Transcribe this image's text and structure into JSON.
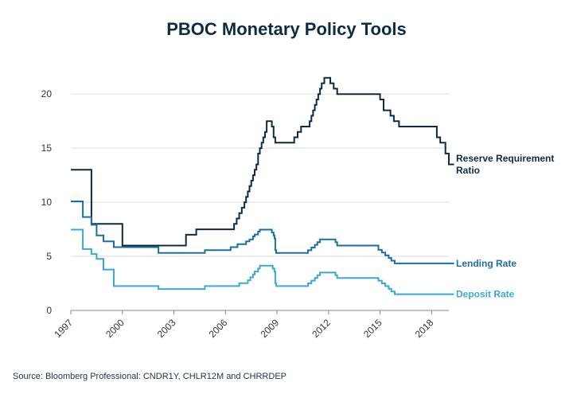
{
  "source": "Source: Bloomberg Professional: CNDR1Y, CHLR12M and CHRRDEP",
  "chart_data": {
    "type": "line",
    "title": "PBOC Monetary Policy Tools",
    "xlabel": "",
    "ylabel": "",
    "xlim": [
      1997,
      2019
    ],
    "ylim": [
      0,
      22
    ],
    "x_ticks": [
      "1997",
      "2000",
      "2003",
      "2006",
      "2009",
      "2012",
      "2015",
      "2018"
    ],
    "y_ticks": [
      "0",
      "5",
      "10",
      "15",
      "20"
    ],
    "grid": "horizontal",
    "legend": "direct labels at right end of lines",
    "series": [
      {
        "name": "Reserve Requirement Ratio",
        "label_lines": [
          "Reserve Requirement",
          "Ratio"
        ],
        "color": "#0d2b45",
        "points": [
          [
            1997.0,
            13
          ],
          [
            1998.2,
            13
          ],
          [
            1998.2,
            8
          ],
          [
            2000.0,
            8
          ],
          [
            2000.0,
            6
          ],
          [
            2003.7,
            6
          ],
          [
            2003.7,
            7
          ],
          [
            2004.3,
            7
          ],
          [
            2004.3,
            7.5
          ],
          [
            2006.5,
            7.5
          ],
          [
            2006.5,
            8
          ],
          [
            2006.65,
            8
          ],
          [
            2006.65,
            8.5
          ],
          [
            2006.8,
            8.5
          ],
          [
            2006.8,
            9
          ],
          [
            2006.95,
            9
          ],
          [
            2006.95,
            9.5
          ],
          [
            2007.1,
            9.5
          ],
          [
            2007.1,
            10
          ],
          [
            2007.2,
            10
          ],
          [
            2007.2,
            10.5
          ],
          [
            2007.3,
            10.5
          ],
          [
            2007.3,
            11
          ],
          [
            2007.4,
            11
          ],
          [
            2007.4,
            11.5
          ],
          [
            2007.5,
            11.5
          ],
          [
            2007.5,
            12
          ],
          [
            2007.6,
            12
          ],
          [
            2007.6,
            12.5
          ],
          [
            2007.7,
            12.5
          ],
          [
            2007.7,
            13
          ],
          [
            2007.8,
            13
          ],
          [
            2007.8,
            13.5
          ],
          [
            2007.9,
            13.5
          ],
          [
            2007.9,
            14.5
          ],
          [
            2008.0,
            14.5
          ],
          [
            2008.0,
            15
          ],
          [
            2008.1,
            15
          ],
          [
            2008.1,
            15.5
          ],
          [
            2008.2,
            15.5
          ],
          [
            2008.2,
            16
          ],
          [
            2008.3,
            16
          ],
          [
            2008.3,
            16.5
          ],
          [
            2008.4,
            16.5
          ],
          [
            2008.4,
            17.5
          ],
          [
            2008.7,
            17.5
          ],
          [
            2008.7,
            17
          ],
          [
            2008.8,
            17
          ],
          [
            2008.8,
            16
          ],
          [
            2008.9,
            16
          ],
          [
            2008.9,
            15.5
          ],
          [
            2010.0,
            15.5
          ],
          [
            2010.0,
            16
          ],
          [
            2010.2,
            16
          ],
          [
            2010.2,
            16.5
          ],
          [
            2010.4,
            16.5
          ],
          [
            2010.4,
            17
          ],
          [
            2010.9,
            17
          ],
          [
            2010.9,
            17.5
          ],
          [
            2011.0,
            17.5
          ],
          [
            2011.0,
            18
          ],
          [
            2011.1,
            18
          ],
          [
            2011.1,
            18.5
          ],
          [
            2011.2,
            18.5
          ],
          [
            2011.2,
            19
          ],
          [
            2011.3,
            19
          ],
          [
            2011.3,
            19.5
          ],
          [
            2011.4,
            19.5
          ],
          [
            2011.4,
            20
          ],
          [
            2011.5,
            20
          ],
          [
            2011.5,
            20.5
          ],
          [
            2011.6,
            20.5
          ],
          [
            2011.6,
            21
          ],
          [
            2011.75,
            21
          ],
          [
            2011.75,
            21.5
          ],
          [
            2012.1,
            21.5
          ],
          [
            2012.1,
            21
          ],
          [
            2012.3,
            21
          ],
          [
            2012.3,
            20.5
          ],
          [
            2012.5,
            20.5
          ],
          [
            2012.5,
            20
          ],
          [
            2015.0,
            20
          ],
          [
            2015.0,
            19.5
          ],
          [
            2015.2,
            19.5
          ],
          [
            2015.2,
            18.5
          ],
          [
            2015.6,
            18.5
          ],
          [
            2015.6,
            18
          ],
          [
            2015.8,
            18
          ],
          [
            2015.8,
            17.5
          ],
          [
            2016.1,
            17.5
          ],
          [
            2016.1,
            17
          ],
          [
            2018.3,
            17
          ],
          [
            2018.3,
            16
          ],
          [
            2018.5,
            16
          ],
          [
            2018.5,
            15.5
          ],
          [
            2018.8,
            15.5
          ],
          [
            2018.8,
            14.5
          ],
          [
            2019.0,
            14.5
          ],
          [
            2019.0,
            13.5
          ],
          [
            2019.3,
            13.5
          ]
        ]
      },
      {
        "name": "Lending Rate",
        "label_lines": [
          "Lending Rate"
        ],
        "color": "#1a6fa3",
        "points": [
          [
            1997.0,
            10.08
          ],
          [
            1997.7,
            10.08
          ],
          [
            1997.7,
            8.64
          ],
          [
            1998.2,
            8.64
          ],
          [
            1998.2,
            7.92
          ],
          [
            1998.5,
            7.92
          ],
          [
            1998.5,
            6.93
          ],
          [
            1998.9,
            6.93
          ],
          [
            1998.9,
            6.39
          ],
          [
            1999.5,
            6.39
          ],
          [
            1999.5,
            5.85
          ],
          [
            2002.1,
            5.85
          ],
          [
            2002.1,
            5.31
          ],
          [
            2004.8,
            5.31
          ],
          [
            2004.8,
            5.58
          ],
          [
            2006.3,
            5.58
          ],
          [
            2006.3,
            5.85
          ],
          [
            2006.7,
            5.85
          ],
          [
            2006.7,
            6.12
          ],
          [
            2007.2,
            6.12
          ],
          [
            2007.2,
            6.39
          ],
          [
            2007.4,
            6.39
          ],
          [
            2007.4,
            6.57
          ],
          [
            2007.6,
            6.57
          ],
          [
            2007.6,
            6.84
          ],
          [
            2007.7,
            6.84
          ],
          [
            2007.7,
            7.02
          ],
          [
            2007.9,
            7.02
          ],
          [
            2007.9,
            7.29
          ],
          [
            2008.0,
            7.29
          ],
          [
            2008.0,
            7.47
          ],
          [
            2008.7,
            7.47
          ],
          [
            2008.7,
            7.2
          ],
          [
            2008.8,
            7.2
          ],
          [
            2008.8,
            6.93
          ],
          [
            2008.85,
            6.93
          ],
          [
            2008.85,
            6.66
          ],
          [
            2008.9,
            6.66
          ],
          [
            2008.9,
            5.58
          ],
          [
            2008.95,
            5.58
          ],
          [
            2008.95,
            5.31
          ],
          [
            2010.8,
            5.31
          ],
          [
            2010.8,
            5.56
          ],
          [
            2011.0,
            5.56
          ],
          [
            2011.0,
            5.81
          ],
          [
            2011.2,
            5.81
          ],
          [
            2011.2,
            6.06
          ],
          [
            2011.35,
            6.06
          ],
          [
            2011.35,
            6.31
          ],
          [
            2011.5,
            6.31
          ],
          [
            2011.5,
            6.56
          ],
          [
            2012.4,
            6.56
          ],
          [
            2012.4,
            6.31
          ],
          [
            2012.5,
            6.31
          ],
          [
            2012.5,
            6.0
          ],
          [
            2014.9,
            6.0
          ],
          [
            2014.9,
            5.6
          ],
          [
            2015.1,
            5.6
          ],
          [
            2015.1,
            5.35
          ],
          [
            2015.3,
            5.35
          ],
          [
            2015.3,
            5.1
          ],
          [
            2015.5,
            5.1
          ],
          [
            2015.5,
            4.85
          ],
          [
            2015.65,
            4.85
          ],
          [
            2015.65,
            4.6
          ],
          [
            2015.85,
            4.6
          ],
          [
            2015.85,
            4.35
          ],
          [
            2019.3,
            4.35
          ]
        ]
      },
      {
        "name": "Deposit Rate",
        "label_lines": [
          "Deposit Rate"
        ],
        "color": "#3aa8d8",
        "points": [
          [
            1997.0,
            7.47
          ],
          [
            1997.7,
            7.47
          ],
          [
            1997.7,
            5.67
          ],
          [
            1998.2,
            5.67
          ],
          [
            1998.2,
            5.22
          ],
          [
            1998.5,
            5.22
          ],
          [
            1998.5,
            4.77
          ],
          [
            1998.9,
            4.77
          ],
          [
            1998.9,
            3.78
          ],
          [
            1999.5,
            3.78
          ],
          [
            1999.5,
            2.25
          ],
          [
            2002.1,
            2.25
          ],
          [
            2002.1,
            1.98
          ],
          [
            2004.8,
            1.98
          ],
          [
            2004.8,
            2.25
          ],
          [
            2006.8,
            2.25
          ],
          [
            2006.8,
            2.52
          ],
          [
            2007.3,
            2.52
          ],
          [
            2007.3,
            2.79
          ],
          [
            2007.45,
            2.79
          ],
          [
            2007.45,
            3.06
          ],
          [
            2007.6,
            3.06
          ],
          [
            2007.6,
            3.33
          ],
          [
            2007.7,
            3.33
          ],
          [
            2007.7,
            3.6
          ],
          [
            2007.9,
            3.6
          ],
          [
            2007.9,
            3.87
          ],
          [
            2008.0,
            3.87
          ],
          [
            2008.0,
            4.14
          ],
          [
            2008.75,
            4.14
          ],
          [
            2008.75,
            3.87
          ],
          [
            2008.85,
            3.87
          ],
          [
            2008.85,
            3.6
          ],
          [
            2008.9,
            3.6
          ],
          [
            2008.9,
            2.52
          ],
          [
            2008.95,
            2.52
          ],
          [
            2008.95,
            2.25
          ],
          [
            2010.8,
            2.25
          ],
          [
            2010.8,
            2.5
          ],
          [
            2011.0,
            2.5
          ],
          [
            2011.0,
            2.75
          ],
          [
            2011.2,
            2.75
          ],
          [
            2011.2,
            3.0
          ],
          [
            2011.35,
            3.0
          ],
          [
            2011.35,
            3.25
          ],
          [
            2011.5,
            3.25
          ],
          [
            2011.5,
            3.5
          ],
          [
            2012.4,
            3.5
          ],
          [
            2012.4,
            3.25
          ],
          [
            2012.5,
            3.25
          ],
          [
            2012.5,
            3.0
          ],
          [
            2014.9,
            3.0
          ],
          [
            2014.9,
            2.75
          ],
          [
            2015.1,
            2.75
          ],
          [
            2015.1,
            2.5
          ],
          [
            2015.3,
            2.5
          ],
          [
            2015.3,
            2.25
          ],
          [
            2015.5,
            2.25
          ],
          [
            2015.5,
            2.0
          ],
          [
            2015.65,
            2.0
          ],
          [
            2015.65,
            1.75
          ],
          [
            2015.85,
            1.75
          ],
          [
            2015.85,
            1.5
          ],
          [
            2019.3,
            1.5
          ]
        ]
      }
    ]
  }
}
